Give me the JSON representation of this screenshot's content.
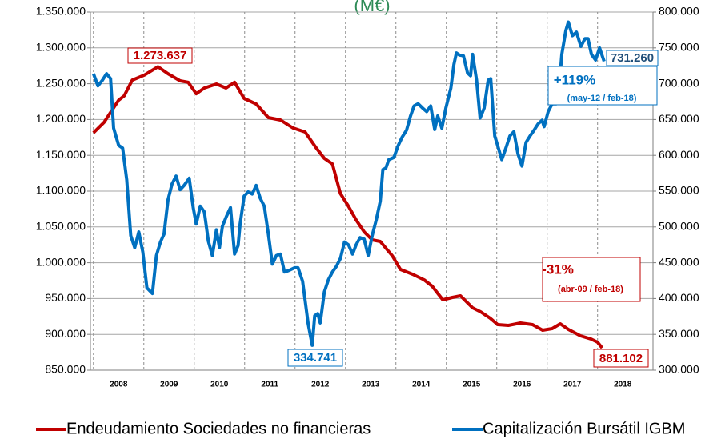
{
  "chart_data": {
    "type": "line",
    "title": "(M€)",
    "title_color": "#2e8b57",
    "xlim": [
      2007.94,
      2019.1
    ],
    "xticks": [
      2008,
      2009,
      2010,
      2011,
      2012,
      2013,
      2014,
      2015,
      2016,
      2017,
      2018
    ],
    "ylim": [
      850000,
      1350000
    ],
    "yticks": [
      {
        "value": 850000,
        "label": "850.000"
      },
      {
        "value": 900000,
        "label": "900.000"
      },
      {
        "value": 950000,
        "label": "950.000"
      },
      {
        "value": 1000000,
        "label": "1.000.000"
      },
      {
        "value": 1050000,
        "label": "1.050.000"
      },
      {
        "value": 1100000,
        "label": "1.100.000"
      },
      {
        "value": 1150000,
        "label": "1.150.000"
      },
      {
        "value": 1200000,
        "label": "1.200.000"
      },
      {
        "value": 1250000,
        "label": "1.250.000"
      },
      {
        "value": 1300000,
        "label": "1.300.000"
      },
      {
        "value": 1350000,
        "label": "1.350.000"
      }
    ],
    "y2lim": [
      300000,
      800000
    ],
    "y2ticks": [
      {
        "value": 300000,
        "label": "300.000"
      },
      {
        "value": 350000,
        "label": "350.000"
      },
      {
        "value": 400000,
        "label": "400.000"
      },
      {
        "value": 450000,
        "label": "450.000"
      },
      {
        "value": 500000,
        "label": "500.000"
      },
      {
        "value": 550000,
        "label": "550.000"
      },
      {
        "value": 600000,
        "label": "600.000"
      },
      {
        "value": 650000,
        "label": "650.000"
      },
      {
        "value": 700000,
        "label": "700.000"
      },
      {
        "value": 750000,
        "label": "750.000"
      },
      {
        "value": 800000,
        "label": "800.000"
      }
    ],
    "grid": true,
    "legend": "bottom",
    "series": [
      {
        "name": "Endeudamiento Sociedades no financieras",
        "color": "#c00000",
        "axis": "y",
        "x": [
          2008.0,
          2008.21,
          2008.5,
          2008.61,
          2008.77,
          2009.01,
          2009.28,
          2009.48,
          2009.72,
          2009.88,
          2010.04,
          2010.2,
          2010.44,
          2010.63,
          2010.8,
          2010.99,
          2011.23,
          2011.47,
          2011.71,
          2011.96,
          2012.2,
          2012.42,
          2012.58,
          2012.74,
          2012.9,
          2013.06,
          2013.21,
          2013.37,
          2013.53,
          2013.69,
          2013.93,
          2014.09,
          2014.33,
          2014.56,
          2014.72,
          2014.93,
          2015.12,
          2015.28,
          2015.52,
          2015.68,
          2015.87,
          2016.02,
          2016.23,
          2016.47,
          2016.71,
          2016.91,
          2017.1,
          2017.26,
          2017.42,
          2017.66,
          2017.87,
          2018.0,
          2018.09
        ],
        "values": [
          1181500,
          1196000,
          1227000,
          1233000,
          1255000,
          1262000,
          1273637,
          1264000,
          1254000,
          1252000,
          1236000,
          1244000,
          1249500,
          1244000,
          1252000,
          1229500,
          1221600,
          1202700,
          1199300,
          1188200,
          1182600,
          1160300,
          1145800,
          1138000,
          1096600,
          1078800,
          1059800,
          1043100,
          1031900,
          1029700,
          1009600,
          990600,
          983900,
          976100,
          967200,
          948200,
          951600,
          953800,
          937100,
          931500,
          922500,
          913600,
          912500,
          915800,
          913600,
          905800,
          908000,
          914700,
          906900,
          898000,
          893500,
          889100,
          881102
        ]
      },
      {
        "name": "Capitalización Bursátil IGBM",
        "color": "#0070c0",
        "axis": "y2",
        "x": [
          2008.0,
          2008.09,
          2008.18,
          2008.26,
          2008.34,
          2008.4,
          2008.5,
          2008.58,
          2008.66,
          2008.74,
          2008.82,
          2008.9,
          2008.98,
          2009.06,
          2009.17,
          2009.25,
          2009.33,
          2009.4,
          2009.48,
          2009.56,
          2009.64,
          2009.72,
          2009.8,
          2009.9,
          2009.98,
          2010.04,
          2010.12,
          2010.2,
          2010.28,
          2010.36,
          2010.44,
          2010.5,
          2010.56,
          2010.64,
          2010.72,
          2010.8,
          2010.87,
          2010.91,
          2010.99,
          2011.07,
          2011.15,
          2011.23,
          2011.31,
          2011.39,
          2011.47,
          2011.55,
          2011.63,
          2011.71,
          2011.79,
          2011.87,
          2011.99,
          2012.06,
          2012.15,
          2012.26,
          2012.34,
          2012.39,
          2012.45,
          2012.5,
          2012.58,
          2012.66,
          2012.74,
          2012.82,
          2012.9,
          2012.98,
          2013.06,
          2013.14,
          2013.21,
          2013.29,
          2013.37,
          2013.45,
          2013.53,
          2013.61,
          2013.69,
          2013.74,
          2013.8,
          2013.86,
          2013.96,
          2014.04,
          2014.12,
          2014.21,
          2014.29,
          2014.36,
          2014.44,
          2014.53,
          2014.61,
          2014.69,
          2014.77,
          2014.83,
          2014.91,
          2014.99,
          2015.09,
          2015.15,
          2015.2,
          2015.26,
          2015.34,
          2015.42,
          2015.48,
          2015.52,
          2015.6,
          2015.67,
          2015.75,
          2015.83,
          2015.88,
          2015.96,
          2016.02,
          2016.1,
          2016.18,
          2016.26,
          2016.34,
          2016.42,
          2016.5,
          2016.58,
          2016.66,
          2016.74,
          2016.82,
          2016.9,
          2016.94,
          2017.02,
          2017.1,
          2017.18,
          2017.23,
          2017.29,
          2017.37,
          2017.42,
          2017.5,
          2017.58,
          2017.67,
          2017.75,
          2017.81,
          2017.88,
          2017.96,
          2018.04,
          2018.13
        ],
        "values": [
          714000,
          697000,
          705000,
          714000,
          707000,
          638000,
          614000,
          610000,
          566000,
          488000,
          471000,
          493000,
          465000,
          415000,
          407000,
          460000,
          479000,
          490000,
          538000,
          560000,
          571000,
          552000,
          558000,
          568000,
          527000,
          504000,
          529000,
          521000,
          480000,
          460000,
          496000,
          471000,
          501000,
          515000,
          527000,
          462000,
          474000,
          504000,
          543000,
          549000,
          546000,
          558000,
          540000,
          529000,
          490000,
          448000,
          460000,
          462000,
          437000,
          439000,
          443000,
          443000,
          424000,
          365000,
          334741,
          376000,
          379000,
          366000,
          409000,
          426000,
          437000,
          445000,
          456000,
          479000,
          475000,
          462000,
          475000,
          485000,
          483000,
          460000,
          488000,
          510000,
          536000,
          580000,
          582000,
          594000,
          597000,
          613000,
          625000,
          635000,
          655000,
          669000,
          672000,
          666000,
          661000,
          669000,
          636000,
          655000,
          638000,
          666000,
          694000,
          727000,
          743000,
          740000,
          739000,
          715000,
          711000,
          741000,
          705000,
          652000,
          666000,
          705000,
          707000,
          627000,
          613000,
          594000,
          610000,
          627000,
          633000,
          602000,
          585000,
          618000,
          627000,
          635000,
          644000,
          649000,
          640000,
          661000,
          672000,
          672000,
          688000,
          741000,
          774000,
          786000,
          767000,
          772000,
          752000,
          763000,
          763000,
          741000,
          733000,
          750000,
          731260
        ]
      }
    ],
    "annotations": [
      {
        "text": "1.273.637",
        "color": "#c00000"
      },
      {
        "text": "334.741",
        "color": "#0070c0"
      },
      {
        "text": "731.260",
        "color": "#1f4e79"
      },
      {
        "text": "881.102",
        "color": "#c00000"
      },
      {
        "text": "+119%",
        "color": "#0070c0"
      },
      {
        "text": "(may-12 / feb-18)",
        "color": "#0070c0"
      },
      {
        "text": "-31%",
        "color": "#c00000"
      },
      {
        "text": "(abr-09 / feb-18)",
        "color": "#c00000"
      }
    ]
  }
}
